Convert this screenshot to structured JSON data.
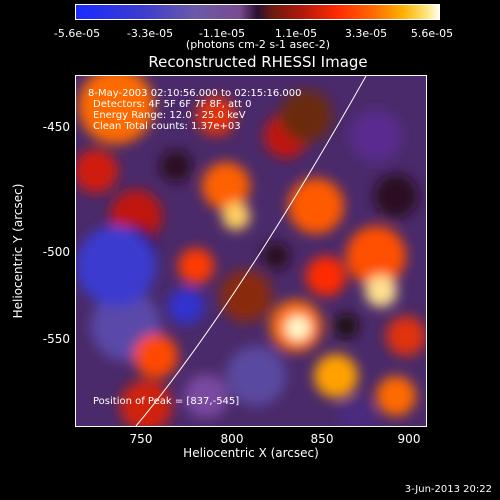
{
  "colorbar": {
    "ticks": [
      "-5.6e-05",
      "-3.3e-05",
      "-1.1e-05",
      "1.1e-05",
      "3.3e-05",
      "5.6e-05"
    ],
    "unit_text": "(photons cm-2 s-1 asec-2)"
  },
  "title": "Reconstructed RHESSI Image",
  "info": {
    "line1": "8-May-2003 02:10:56.000 to 02:15:16.000",
    "line2": "Detectors: 4F 5F 6F 7F 8F, att 0",
    "line3": "Energy Range: 12.0 - 25.0 keV",
    "line4": "Clean     Total counts: 1.37e+03",
    "peak": "Position of Peak = [837,-545]"
  },
  "axes": {
    "xlabel": "Heliocentric X (arcsec)",
    "ylabel": "Heliocentric Y (arcsec)",
    "xticks": [
      "750",
      "800",
      "850",
      "900"
    ],
    "yticks": [
      "-450",
      "-500",
      "-550"
    ]
  },
  "timestamp": "3-Jun-2013 20:22"
}
